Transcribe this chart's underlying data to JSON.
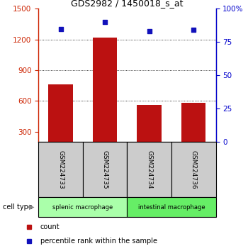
{
  "title": "GDS2982 / 1450018_s_at",
  "samples": [
    "GSM224733",
    "GSM224735",
    "GSM224734",
    "GSM224736"
  ],
  "counts": [
    760,
    1220,
    560,
    580
  ],
  "percentiles": [
    85,
    90,
    83,
    84
  ],
  "group_labels": [
    "splenic macrophage",
    "intestinal macrophage"
  ],
  "group_ranges": [
    [
      0,
      1
    ],
    [
      2,
      3
    ]
  ],
  "group_colors": [
    "#AAFFAA",
    "#66EE66"
  ],
  "ylim_left": [
    200,
    1500
  ],
  "ylim_right": [
    0,
    100
  ],
  "yticks_left": [
    300,
    600,
    900,
    1200,
    1500
  ],
  "yticks_right": [
    0,
    25,
    50,
    75,
    100
  ],
  "bar_color": "#BB1111",
  "scatter_color": "#1111BB",
  "left_axis_color": "#CC2200",
  "right_axis_color": "#0000CC",
  "bar_bottom": 200,
  "gray_box_color": "#CCCCCC",
  "cell_type_label": "cell type",
  "legend_count": "count",
  "legend_pct": "percentile rank within the sample"
}
